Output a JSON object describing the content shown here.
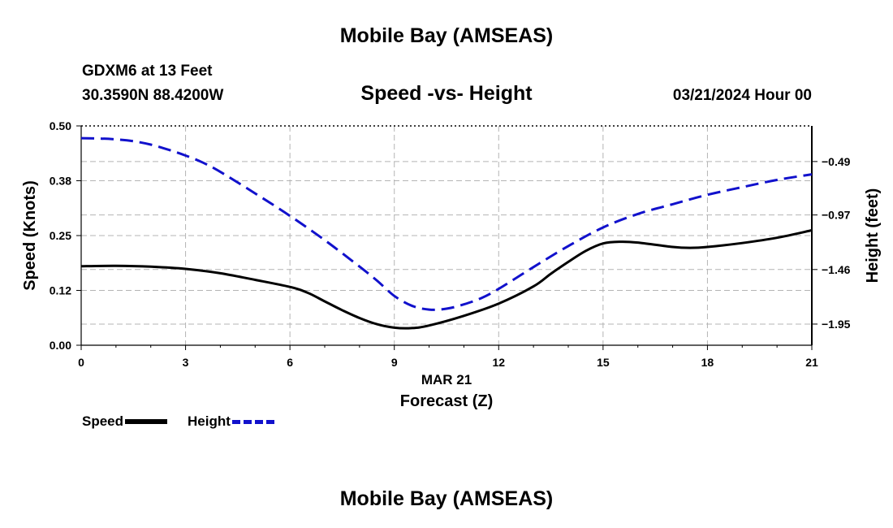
{
  "header": {
    "title": "Mobile Bay (AMSEAS)",
    "station": "GDXM6 at 13 Feet",
    "coords": "30.3590N  88.4200W",
    "subtitle": "Speed -vs- Height",
    "datetime": "03/21/2024 Hour 00"
  },
  "footer": {
    "title": "Mobile Bay (AMSEAS)"
  },
  "legend": {
    "speed_label": "Speed",
    "height_label": "Height"
  },
  "colors": {
    "speed": "#000000",
    "height": "#1111cc",
    "grid": "#b4b4b4"
  },
  "chart_data": {
    "type": "line",
    "title": "Speed -vs- Height",
    "xlabel": "Forecast (Z)",
    "xdate": "MAR 21",
    "ylabel": "Speed (Knots)",
    "y2label": "Height (feet)",
    "xlim": [
      0,
      21
    ],
    "ylim": [
      0,
      0.5
    ],
    "y2lim": [
      -2.14,
      -0.17
    ],
    "xticks": [
      0,
      3,
      6,
      9,
      12,
      15,
      18,
      21
    ],
    "xtick_labels": [
      "0",
      "3",
      "6",
      "9",
      "12",
      "15",
      "18",
      "21"
    ],
    "yticks": [
      0,
      0.125,
      0.25,
      0.375,
      0.5
    ],
    "ytick_labels": [
      "0.00",
      "0.12",
      "0.25",
      "0.38",
      "0.50"
    ],
    "y2ticks": [
      -1.95,
      -1.46,
      -0.97,
      -0.49
    ],
    "y2tick_labels": [
      "−1.95",
      "−1.46",
      "−0.97",
      "−0.49"
    ],
    "grid": true,
    "series": [
      {
        "name": "Speed",
        "axis": "left",
        "x": [
          0,
          1,
          2,
          3,
          4,
          5,
          6,
          6.5,
          7,
          7.5,
          8,
          8.5,
          9,
          9.5,
          10,
          11,
          12,
          13,
          13.5,
          14,
          14.5,
          15,
          15.5,
          16,
          17,
          17.5,
          18,
          19,
          20,
          21
        ],
        "values": [
          0.18,
          0.181,
          0.179,
          0.174,
          0.164,
          0.149,
          0.133,
          0.12,
          0.1,
          0.08,
          0.062,
          0.048,
          0.04,
          0.039,
          0.045,
          0.067,
          0.095,
          0.134,
          0.163,
          0.19,
          0.215,
          0.232,
          0.236,
          0.234,
          0.224,
          0.222,
          0.224,
          0.233,
          0.245,
          0.262
        ]
      },
      {
        "name": "Height",
        "axis": "right",
        "x": [
          0,
          0.5,
          1,
          1.5,
          2,
          2.5,
          3,
          3.5,
          4,
          5,
          6,
          7,
          8,
          8.5,
          9,
          9.5,
          10,
          10.5,
          11,
          11.5,
          12,
          13,
          14,
          15,
          16,
          17,
          18,
          19,
          20,
          21
        ],
        "values": [
          -0.28,
          -0.283,
          -0.291,
          -0.307,
          -0.338,
          -0.383,
          -0.436,
          -0.5,
          -0.583,
          -0.776,
          -0.978,
          -1.196,
          -1.434,
          -1.559,
          -1.697,
          -1.785,
          -1.82,
          -1.812,
          -1.773,
          -1.717,
          -1.634,
          -1.438,
          -1.249,
          -1.082,
          -0.961,
          -0.873,
          -0.789,
          -0.72,
          -0.655,
          -0.605
        ]
      }
    ]
  }
}
